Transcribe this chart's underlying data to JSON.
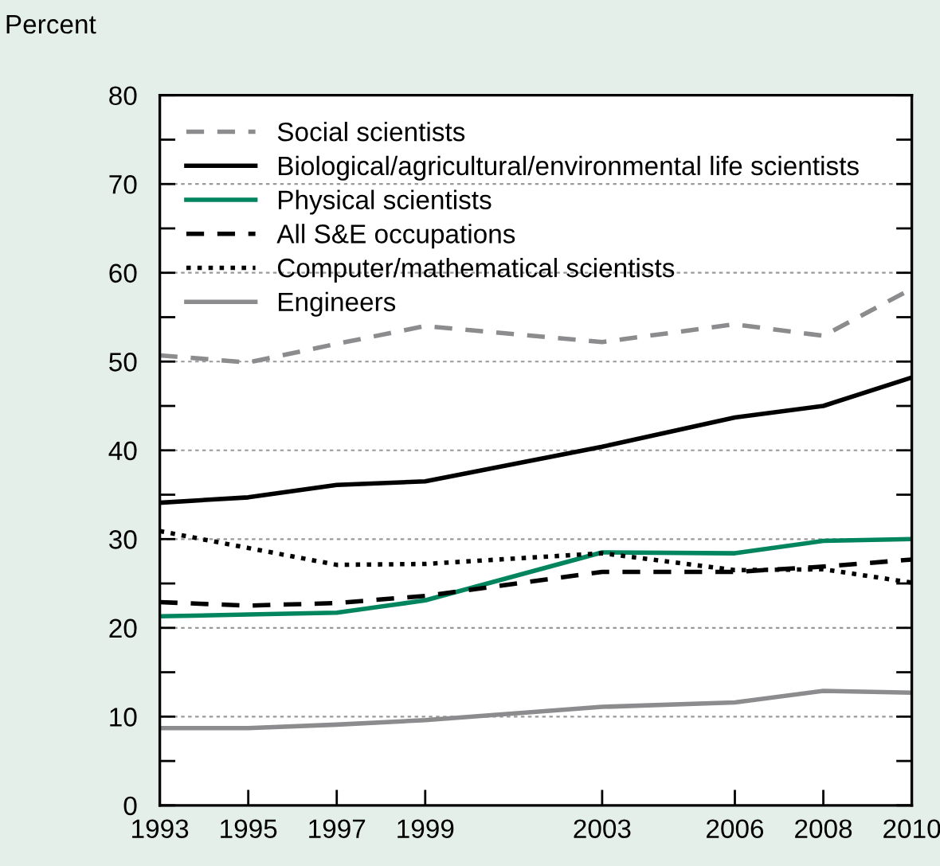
{
  "chart_data": {
    "type": "line",
    "ylabel": "Percent",
    "x": [
      1993,
      1995,
      1997,
      1999,
      2003,
      2006,
      2008,
      2010
    ],
    "series": [
      {
        "name": "Social scientists",
        "color": "#8c8c8e",
        "line_style": "dashed",
        "values": [
          50.7,
          49.9,
          52.0,
          54.0,
          52.2,
          54.2,
          52.9,
          58.2
        ]
      },
      {
        "name": "Biological/agricultural/environmental life scientists",
        "color": "#000000",
        "line_style": "solid",
        "values": [
          34.1,
          34.7,
          36.1,
          36.5,
          40.4,
          43.7,
          45.0,
          48.2
        ]
      },
      {
        "name": "Physical scientists",
        "color": "#00855f",
        "line_style": "solid",
        "values": [
          21.3,
          21.5,
          21.7,
          23.1,
          28.5,
          28.4,
          29.8,
          30.0
        ]
      },
      {
        "name": "All S&E occupations",
        "color": "#000000",
        "line_style": "dashed",
        "values": [
          22.9,
          22.5,
          22.8,
          23.6,
          26.3,
          26.3,
          26.9,
          27.7
        ]
      },
      {
        "name": "Computer/mathematical scientists",
        "color": "#000000",
        "line_style": "dotted",
        "values": [
          30.9,
          29.0,
          27.1,
          27.2,
          28.4,
          26.5,
          26.6,
          25.1
        ]
      },
      {
        "name": "Engineers",
        "color": "#8c8c8e",
        "line_style": "solid",
        "values": [
          8.7,
          8.7,
          9.1,
          9.6,
          11.1,
          11.6,
          12.9,
          12.7
        ]
      }
    ],
    "xlim": [
      1993,
      2010
    ],
    "xticks": [
      1993,
      1995,
      1997,
      1999,
      2003,
      2006,
      2008,
      2010
    ],
    "ylim": [
      0,
      80
    ],
    "yticks": [
      0,
      {
        "value": 5,
        "label": null
      },
      10,
      {
        "value": 15,
        "label": null
      },
      20,
      {
        "value": 25,
        "label": null
      },
      30,
      {
        "value": 35,
        "label": null
      },
      40,
      {
        "value": 45,
        "label": null
      },
      50,
      {
        "value": 55,
        "label": null
      },
      60,
      {
        "value": 65,
        "label": null
      },
      70,
      {
        "value": 75,
        "label": null
      },
      80
    ],
    "grid": "y",
    "legend": "top left",
    "marker": "none"
  }
}
